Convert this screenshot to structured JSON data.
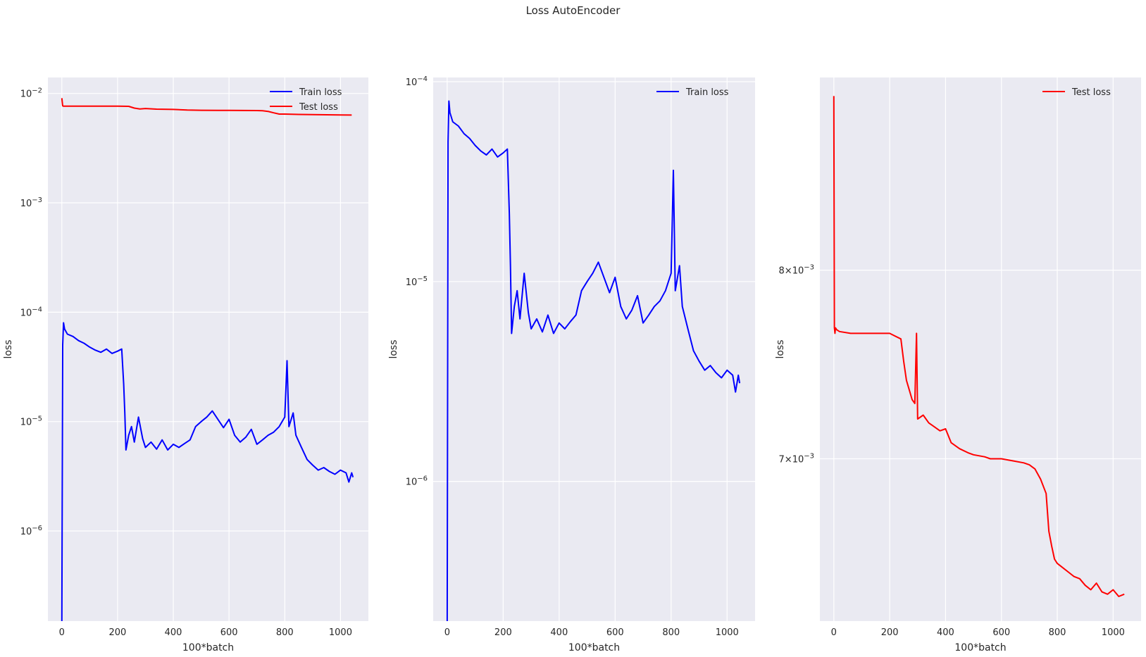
{
  "figure": {
    "title": "Loss AutoEncoder",
    "background": "#ffffff",
    "axes_bg": "#eaeaf2",
    "grid_color": "#ffffff"
  },
  "chart_data": [
    {
      "type": "line",
      "yscale": "log",
      "xlabel": "100*batch",
      "ylabel": "loss",
      "xlim": [
        -50,
        1100
      ],
      "ylim": [
        1.5e-07,
        0.014
      ],
      "xticks": [
        0,
        200,
        400,
        600,
        800,
        1000
      ],
      "xtick_labels": [
        "0",
        "200",
        "400",
        "600",
        "800",
        "1000"
      ],
      "yticks": [
        1e-06,
        1e-05,
        0.0001,
        0.001,
        0.01
      ],
      "ytick_labels": [
        [
          "10",
          "−6"
        ],
        [
          "10",
          "−5"
        ],
        [
          "10",
          "−4"
        ],
        [
          "10",
          "−3"
        ],
        [
          "10",
          "−2"
        ]
      ],
      "legend": "top-right",
      "series": [
        {
          "name": "Train loss",
          "color": "#0000ff",
          "x": [
            0,
            3,
            6,
            10,
            20,
            40,
            60,
            80,
            100,
            120,
            140,
            160,
            180,
            200,
            215,
            222,
            226,
            230,
            240,
            250,
            260,
            275,
            290,
            300,
            320,
            340,
            360,
            380,
            400,
            420,
            440,
            460,
            480,
            500,
            520,
            540,
            560,
            580,
            600,
            620,
            640,
            660,
            680,
            700,
            720,
            740,
            760,
            780,
            800,
            808,
            815,
            830,
            840,
            860,
            880,
            900,
            920,
            940,
            960,
            980,
            1000,
            1020,
            1030,
            1040,
            1045
          ],
          "y": [
            1.5e-07,
            5e-05,
            8e-05,
            7e-05,
            6.3e-05,
            6e-05,
            5.5e-05,
            5.2e-05,
            4.8e-05,
            4.5e-05,
            4.3e-05,
            4.6e-05,
            4.2e-05,
            4.4e-05,
            4.6e-05,
            2.2e-05,
            1.2e-05,
            5.5e-06,
            7.5e-06,
            9e-06,
            6.5e-06,
            1.1e-05,
            7e-06,
            5.8e-06,
            6.5e-06,
            5.6e-06,
            6.8e-06,
            5.5e-06,
            6.2e-06,
            5.8e-06,
            6.3e-06,
            6.8e-06,
            9e-06,
            1e-05,
            1.1e-05,
            1.25e-05,
            1.05e-05,
            8.8e-06,
            1.05e-05,
            7.5e-06,
            6.5e-06,
            7.2e-06,
            8.5e-06,
            6.2e-06,
            6.8e-06,
            7.5e-06,
            8e-06,
            9e-06,
            1.1e-05,
            3.6e-05,
            9e-06,
            1.2e-05,
            7.5e-06,
            5.8e-06,
            4.5e-06,
            4e-06,
            3.6e-06,
            3.8e-06,
            3.5e-06,
            3.3e-06,
            3.6e-06,
            3.4e-06,
            2.8e-06,
            3.4e-06,
            3.1e-06
          ]
        },
        {
          "name": "Test loss",
          "color": "#ff0000",
          "x": [
            0,
            3,
            6,
            20,
            60,
            100,
            150,
            200,
            240,
            260,
            280,
            300,
            340,
            400,
            450,
            500,
            560,
            600,
            650,
            700,
            720,
            740,
            760,
            780,
            800,
            850,
            900,
            950,
            1000,
            1040
          ],
          "y": [
            0.00905,
            0.0077,
            0.00765,
            0.00765,
            0.00765,
            0.00765,
            0.00765,
            0.00765,
            0.00762,
            0.00735,
            0.00722,
            0.00728,
            0.00718,
            0.00714,
            0.00705,
            0.00702,
            0.00701,
            0.007,
            0.00699,
            0.00698,
            0.00695,
            0.00685,
            0.00665,
            0.00648,
            0.00648,
            0.00643,
            0.0064,
            0.00638,
            0.00636,
            0.00634
          ]
        }
      ]
    },
    {
      "type": "line",
      "yscale": "log",
      "xlabel": "100*batch",
      "ylabel": "loss",
      "xlim": [
        -50,
        1100
      ],
      "ylim": [
        2e-07,
        0.000105
      ],
      "xticks": [
        0,
        200,
        400,
        600,
        800,
        1000
      ],
      "xtick_labels": [
        "0",
        "200",
        "400",
        "600",
        "800",
        "1000"
      ],
      "yticks": [
        1e-06,
        1e-05,
        0.0001
      ],
      "ytick_labels": [
        [
          "10",
          "−6"
        ],
        [
          "10",
          "−5"
        ],
        [
          "10",
          "−4"
        ]
      ],
      "legend": "top-right",
      "series": [
        {
          "name": "Train loss",
          "color": "#0000ff",
          "x": [
            0,
            3,
            6,
            10,
            20,
            40,
            60,
            80,
            100,
            120,
            140,
            160,
            180,
            200,
            215,
            222,
            226,
            230,
            240,
            250,
            260,
            275,
            290,
            300,
            320,
            340,
            360,
            380,
            400,
            420,
            440,
            460,
            480,
            500,
            520,
            540,
            560,
            580,
            600,
            620,
            640,
            660,
            680,
            700,
            720,
            740,
            760,
            780,
            800,
            808,
            815,
            830,
            840,
            860,
            880,
            900,
            920,
            940,
            960,
            980,
            1000,
            1020,
            1030,
            1040,
            1045
          ],
          "y": [
            2e-07,
            5e-05,
            8e-05,
            7e-05,
            6.3e-05,
            6e-05,
            5.5e-05,
            5.2e-05,
            4.8e-05,
            4.5e-05,
            4.3e-05,
            4.6e-05,
            4.2e-05,
            4.4e-05,
            4.6e-05,
            2.2e-05,
            1.2e-05,
            5.5e-06,
            7.5e-06,
            9e-06,
            6.5e-06,
            1.1e-05,
            7e-06,
            5.8e-06,
            6.5e-06,
            5.6e-06,
            6.8e-06,
            5.5e-06,
            6.2e-06,
            5.8e-06,
            6.3e-06,
            6.8e-06,
            9e-06,
            1e-05,
            1.1e-05,
            1.25e-05,
            1.05e-05,
            8.8e-06,
            1.05e-05,
            7.5e-06,
            6.5e-06,
            7.2e-06,
            8.5e-06,
            6.2e-06,
            6.8e-06,
            7.5e-06,
            8e-06,
            9e-06,
            1.1e-05,
            3.6e-05,
            9e-06,
            1.2e-05,
            7.5e-06,
            5.8e-06,
            4.5e-06,
            4e-06,
            3.6e-06,
            3.8e-06,
            3.5e-06,
            3.3e-06,
            3.6e-06,
            3.4e-06,
            2.8e-06,
            3.4e-06,
            3.1e-06
          ]
        }
      ]
    },
    {
      "type": "line",
      "yscale": "log",
      "xlabel": "100*batch",
      "ylabel": "loss",
      "xlim": [
        -50,
        1100
      ],
      "ylim": [
        0.00624,
        0.00917
      ],
      "xticks": [
        0,
        200,
        400,
        600,
        800,
        1000
      ],
      "xtick_labels": [
        "0",
        "200",
        "400",
        "600",
        "800",
        "1000"
      ],
      "yticks": [
        0.007,
        0.008
      ],
      "ytick_labels": [
        [
          "7×10",
          "−3"
        ],
        [
          "8×10",
          "−3"
        ]
      ],
      "legend": "top-right",
      "series": [
        {
          "name": "Test loss",
          "color": "#ff0000",
          "x": [
            0,
            2,
            4,
            6,
            10,
            20,
            60,
            100,
            150,
            200,
            240,
            250,
            260,
            270,
            280,
            290,
            296,
            300,
            320,
            340,
            360,
            380,
            400,
            420,
            450,
            480,
            500,
            540,
            560,
            600,
            640,
            680,
            700,
            720,
            740,
            760,
            770,
            780,
            790,
            800,
            820,
            840,
            860,
            880,
            900,
            920,
            940,
            960,
            980,
            1000,
            1020,
            1040
          ],
          "y": [
            0.00905,
            0.00768,
            0.00765,
            0.00768,
            0.00767,
            0.00766,
            0.00765,
            0.00765,
            0.00765,
            0.00765,
            0.00762,
            0.0075,
            0.0074,
            0.00735,
            0.0073,
            0.00728,
            0.00765,
            0.0072,
            0.00722,
            0.00718,
            0.00716,
            0.00714,
            0.00715,
            0.00708,
            0.00705,
            0.00703,
            0.00702,
            0.00701,
            0.007,
            0.007,
            0.00699,
            0.00698,
            0.00697,
            0.00695,
            0.0069,
            0.00683,
            0.00665,
            0.00658,
            0.00652,
            0.0065,
            0.00648,
            0.00646,
            0.00644,
            0.00643,
            0.0064,
            0.00638,
            0.00641,
            0.00637,
            0.00636,
            0.00638,
            0.00635,
            0.00636
          ]
        }
      ]
    }
  ]
}
